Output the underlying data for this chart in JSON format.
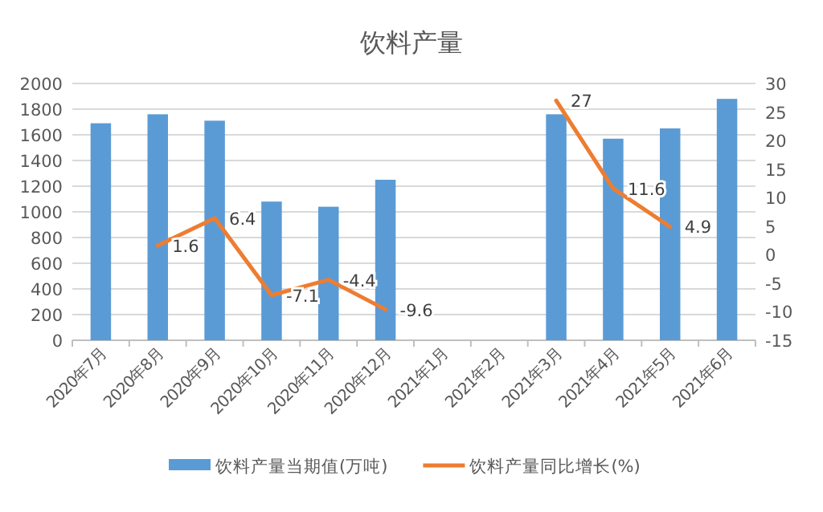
{
  "chart_data": {
    "type": "bar",
    "title": "饮料产量",
    "categories": [
      "2020年7月",
      "2020年8月",
      "2020年9月",
      "2020年10月",
      "2020年11月",
      "2020年12月",
      "2021年1月",
      "2021年2月",
      "2021年3月",
      "2021年4月",
      "2021年5月",
      "2021年6月"
    ],
    "series": [
      {
        "name": "饮料产量当期值(万吨)",
        "color": "#5b9bd5",
        "values": [
          1690,
          1760,
          1710,
          1080,
          1040,
          1250,
          null,
          null,
          1760,
          1570,
          1650,
          1880
        ]
      },
      {
        "name": "饮料产量同比增长(%)",
        "type": "line",
        "axis": "y2",
        "color": "#ed7d31",
        "values": [
          null,
          1.6,
          6.4,
          -7.1,
          -4.4,
          -9.6,
          null,
          null,
          27,
          11.6,
          4.9,
          null
        ],
        "value_labels": [
          null,
          "1.6",
          "6.4",
          "-7.1",
          "-4.4",
          "-9.6",
          null,
          null,
          "27",
          "11.6",
          "4.9",
          null
        ]
      }
    ],
    "ylim": [
      0,
      2000
    ],
    "yticks": [
      0,
      200,
      400,
      600,
      800,
      1000,
      1200,
      1400,
      1600,
      1800,
      2000
    ],
    "y2lim": [
      -15,
      30
    ],
    "y2ticks": [
      -15,
      -10,
      -5,
      0,
      5,
      10,
      15,
      20,
      25,
      30
    ],
    "grid": "y",
    "legend": "bottom"
  }
}
